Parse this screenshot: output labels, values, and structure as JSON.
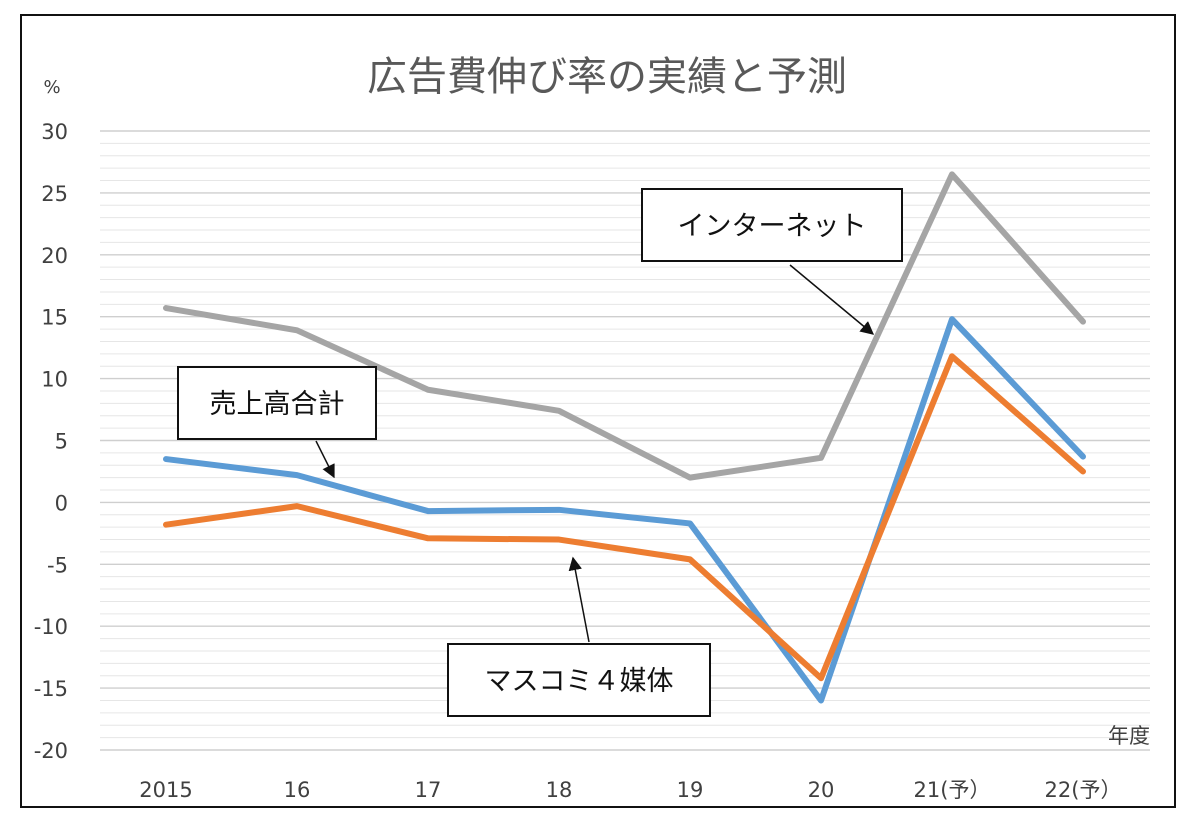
{
  "chart_data": {
    "type": "line",
    "title": "広告費伸び率の実績と予測",
    "ylabel": "%",
    "xlabel": "年度",
    "ylim": [
      -20,
      30
    ],
    "yticks": [
      30,
      25,
      20,
      15,
      10,
      5,
      0,
      -5,
      -10,
      -15,
      -20
    ],
    "categories": [
      "2015",
      "16",
      "17",
      "18",
      "19",
      "20",
      "21(予）",
      "22(予）"
    ],
    "grid": true,
    "legend": "none",
    "series": [
      {
        "name": "インターネット",
        "color": "#a5a5a5",
        "values": [
          15.7,
          13.9,
          9.1,
          7.4,
          2.0,
          3.6,
          26.5,
          14.6
        ]
      },
      {
        "name": "売上高合計",
        "color": "#5b9bd5",
        "values": [
          3.5,
          2.2,
          -0.7,
          -0.6,
          -1.7,
          -16.0,
          14.8,
          3.7
        ]
      },
      {
        "name": "マスコミ４媒体",
        "color": "#ed7d31",
        "values": [
          -1.8,
          -0.3,
          -2.9,
          -3.0,
          -4.6,
          -14.2,
          11.8,
          2.5
        ]
      }
    ],
    "annotations": [
      {
        "text": "インターネット",
        "series": 0
      },
      {
        "text": "売上高合計",
        "series": 1
      },
      {
        "text": "マスコミ４媒体",
        "series": 2
      }
    ]
  }
}
